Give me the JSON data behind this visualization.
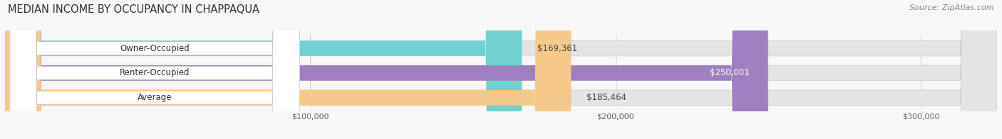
{
  "title": "MEDIAN INCOME BY OCCUPANCY IN CHAPPAQUA",
  "source": "Source: ZipAtlas.com",
  "categories": [
    "Owner-Occupied",
    "Renter-Occupied",
    "Average"
  ],
  "values": [
    169361,
    250001,
    185464
  ],
  "labels": [
    "$169,361",
    "$250,001",
    "$185,464"
  ],
  "label_inside": [
    false,
    true,
    false
  ],
  "bar_colors": [
    "#72d0d0",
    "#a07fc0",
    "#f5c98a"
  ],
  "bar_bg_color": "#e4e4e4",
  "xticks": [
    100000,
    200000,
    300000
  ],
  "xticklabels": [
    "$100,000",
    "$200,000",
    "$300,000"
  ],
  "xmin": 0,
  "xmax": 325000,
  "title_fontsize": 10.5,
  "label_fontsize": 8.5,
  "value_fontsize": 8.5,
  "tick_fontsize": 8,
  "source_fontsize": 8,
  "background_color": "#f7f7f7",
  "cat_label_bg": "#ffffff"
}
